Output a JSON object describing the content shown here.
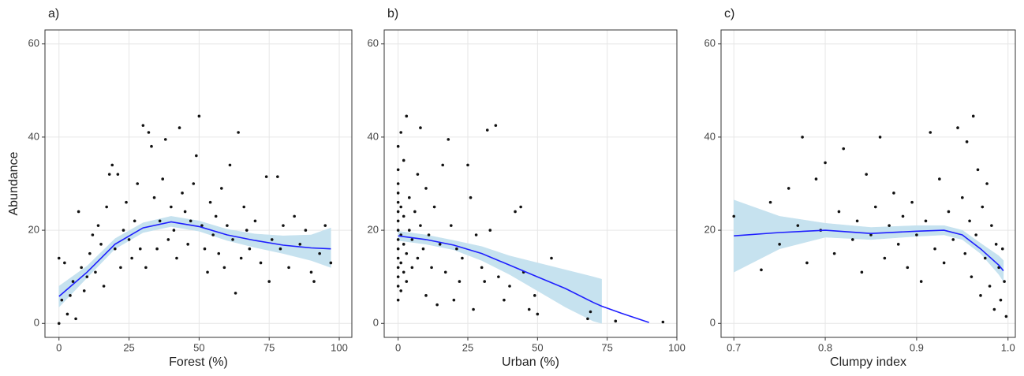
{
  "chart_data": [
    {
      "type": "scatter",
      "title": "a)",
      "x_label": "Forest (%)",
      "y_label": "Abundance",
      "xlim": [
        -5,
        104.5
      ],
      "ylim": [
        -3,
        63
      ],
      "xticks": [
        0,
        25,
        50,
        75,
        100
      ],
      "yticks": [
        0,
        20,
        40,
        60
      ],
      "grid": true,
      "point_color": "#111111",
      "x": [
        0,
        0,
        1,
        2,
        3,
        4,
        5,
        6,
        7,
        8,
        9,
        10,
        11,
        12,
        13,
        14,
        15,
        16,
        17,
        18,
        19,
        20,
        21,
        22,
        23,
        24,
        25,
        26,
        27,
        28,
        29,
        30,
        31,
        32,
        33,
        34,
        35,
        36,
        37,
        38,
        39,
        40,
        41,
        42,
        43,
        44,
        45,
        46,
        47,
        48,
        49,
        50,
        51,
        52,
        53,
        54,
        55,
        56,
        57,
        58,
        59,
        60,
        61,
        62,
        63,
        64,
        65,
        66,
        67,
        68,
        70,
        72,
        74,
        75,
        76,
        78,
        79,
        80,
        82,
        84,
        86,
        88,
        90,
        91,
        93,
        95,
        97
      ],
      "values": [
        0,
        14,
        5,
        13,
        2,
        6,
        9,
        1,
        24,
        12,
        7,
        10,
        15,
        19,
        11,
        21,
        17,
        8,
        25,
        32,
        34,
        16,
        32,
        12,
        20,
        26,
        18,
        14,
        22,
        30,
        16,
        42.5,
        12,
        41,
        38,
        27,
        16,
        22,
        31,
        39.5,
        18,
        25,
        20,
        14,
        42,
        28,
        24,
        17,
        22,
        30,
        36,
        44.5,
        21,
        16,
        11,
        26,
        19,
        23,
        15,
        29,
        12,
        21,
        34,
        18,
        6.5,
        41,
        14,
        25,
        20,
        16,
        22,
        13,
        31.5,
        9,
        18,
        31.5,
        16,
        21,
        12,
        23,
        17,
        20,
        11,
        9,
        15,
        21,
        13
      ],
      "fit": {
        "color": "#1f1fff",
        "band_color": "#c6e2ef",
        "x": [
          0,
          10,
          20,
          30,
          40,
          50,
          60,
          70,
          80,
          90,
          97
        ],
        "values": [
          5.8,
          11,
          17,
          20.5,
          21.8,
          20.8,
          19,
          17.8,
          16.8,
          16.2,
          16
        ],
        "lower": [
          3.5,
          9.8,
          16,
          19.5,
          20.8,
          19.8,
          17.8,
          16.3,
          15,
          13.5,
          12
        ],
        "upper": [
          8,
          12.3,
          18.2,
          21.6,
          23,
          22,
          20.2,
          19.2,
          18.8,
          19,
          20.5
        ]
      }
    },
    {
      "type": "scatter",
      "title": "b)",
      "x_label": "Urban (%)",
      "xlim": [
        -5,
        100
      ],
      "ylim": [
        -3,
        63
      ],
      "xticks": [
        0,
        25,
        50,
        75,
        100
      ],
      "yticks": [
        0,
        20,
        40,
        60
      ],
      "grid": true,
      "point_color": "#111111",
      "x": [
        0,
        0,
        0,
        0,
        0,
        0,
        0,
        0,
        0,
        0,
        0,
        0,
        0,
        0,
        0,
        1,
        1,
        1,
        1,
        1,
        2,
        2,
        2,
        2,
        3,
        3,
        3,
        4,
        4,
        5,
        5,
        6,
        7,
        7,
        8,
        8,
        9,
        10,
        10,
        11,
        12,
        13,
        14,
        15,
        16,
        17,
        18,
        19,
        20,
        21,
        22,
        23,
        25,
        26,
        27,
        28,
        30,
        31,
        32,
        33,
        35,
        36,
        38,
        40,
        42,
        44,
        45,
        47,
        49,
        50,
        55,
        68,
        69,
        78,
        95
      ],
      "values": [
        5,
        8,
        10,
        12,
        14,
        16,
        18,
        20,
        22,
        24,
        26,
        28,
        30,
        33,
        38,
        7,
        13,
        19,
        25,
        41,
        11,
        17,
        23,
        35,
        9,
        15,
        44.5,
        20,
        27,
        12,
        18,
        24,
        14,
        32,
        21,
        42,
        16,
        6,
        29,
        19,
        12,
        25,
        4,
        17,
        34,
        11,
        39.5,
        21,
        5,
        16,
        9,
        14,
        34,
        27,
        3,
        19,
        12,
        9,
        41.5,
        20,
        42.5,
        10,
        5,
        8,
        24,
        25,
        11,
        3,
        6,
        2,
        14,
        1,
        2.5,
        0.5,
        0.3
      ],
      "fit": {
        "color": "#1f1fff",
        "band_color": "#c6e2ef",
        "x": [
          0,
          10,
          20,
          30,
          40,
          50,
          60,
          70,
          73,
          80,
          90
        ],
        "values": [
          18.8,
          18,
          16.8,
          15,
          12.5,
          10,
          7.5,
          4.5,
          3.7,
          2.2,
          0.2
        ],
        "lower": [
          17.8,
          17,
          15.8,
          13.5,
          10.5,
          7,
          3.5,
          0.5,
          0,
          null,
          null
        ],
        "upper": [
          19.8,
          19,
          17.8,
          16.5,
          14.5,
          13,
          11.5,
          10,
          9.5,
          null,
          null
        ]
      }
    },
    {
      "type": "scatter",
      "title": "c)",
      "x_label": "Clumpy index",
      "xlim": [
        0.686,
        1.008
      ],
      "ylim": [
        -3,
        63
      ],
      "xticks": [
        0.7,
        0.8,
        0.9,
        {
          "value": 1,
          "label": "1.0"
        }
      ],
      "yticks": [
        0,
        20,
        40,
        60
      ],
      "grid": true,
      "point_color": "#111111",
      "x": [
        0.7,
        0.73,
        0.74,
        0.75,
        0.76,
        0.77,
        0.775,
        0.78,
        0.79,
        0.795,
        0.8,
        0.81,
        0.815,
        0.82,
        0.83,
        0.835,
        0.84,
        0.845,
        0.85,
        0.855,
        0.86,
        0.865,
        0.87,
        0.875,
        0.88,
        0.885,
        0.89,
        0.895,
        0.9,
        0.905,
        0.91,
        0.915,
        0.92,
        0.925,
        0.93,
        0.935,
        0.94,
        0.945,
        0.95,
        0.953,
        0.955,
        0.958,
        0.96,
        0.962,
        0.965,
        0.967,
        0.97,
        0.972,
        0.975,
        0.977,
        0.98,
        0.982,
        0.985,
        0.987,
        0.99,
        0.992,
        0.994,
        0.996,
        0.998
      ],
      "values": [
        23,
        11.5,
        26,
        17,
        29,
        21,
        40,
        13,
        31,
        20,
        34.5,
        15,
        24,
        37.5,
        18,
        22,
        11,
        32,
        19,
        25,
        40,
        14,
        21,
        28,
        17,
        23,
        12,
        26,
        19,
        9,
        22,
        41,
        16,
        31,
        13,
        24,
        18,
        42,
        27,
        15,
        39,
        22,
        10,
        44.5,
        19,
        33,
        6,
        25,
        14,
        30,
        8,
        21,
        3,
        17,
        12,
        5,
        16,
        9,
        1.5
      ],
      "fit": {
        "color": "#1f1fff",
        "band_color": "#c6e2ef",
        "x": [
          0.7,
          0.75,
          0.8,
          0.85,
          0.9,
          0.93,
          0.95,
          0.97,
          0.99,
          0.995
        ],
        "values": [
          18.8,
          19.5,
          20,
          19.3,
          19.8,
          20,
          19,
          16,
          12.5,
          11.3
        ],
        "lower": [
          11,
          16,
          18.5,
          18,
          18.7,
          19,
          18,
          15,
          10.5,
          9
        ],
        "upper": [
          26.5,
          23,
          21.5,
          20.6,
          21,
          21,
          20,
          17.2,
          14.5,
          13.5
        ]
      }
    }
  ]
}
